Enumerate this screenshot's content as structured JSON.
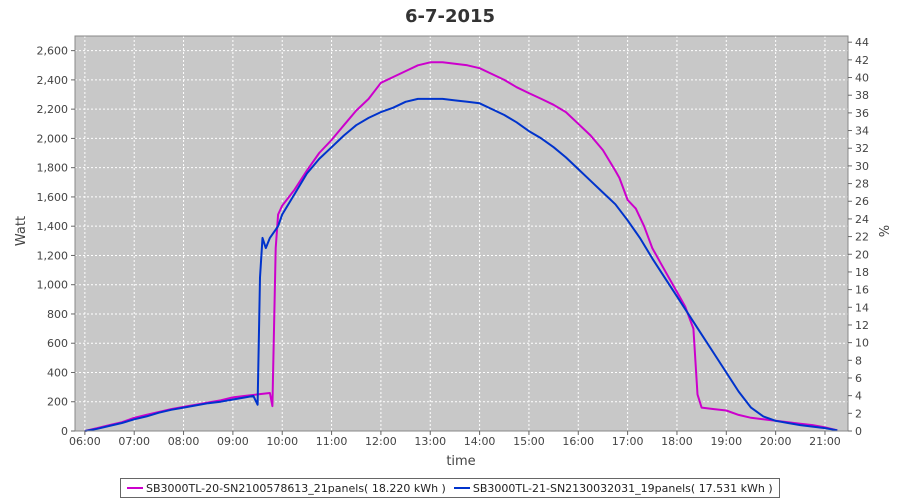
{
  "chart_data": {
    "type": "line",
    "title": "6-7-2015",
    "xlabel": "time",
    "ylabel": "Watt",
    "y2label": "%",
    "x_range": [
      "05:48",
      "21:28"
    ],
    "x_ticks": [
      "06:00",
      "07:00",
      "08:00",
      "09:00",
      "10:00",
      "11:00",
      "12:00",
      "13:00",
      "14:00",
      "15:00",
      "16:00",
      "17:00",
      "18:00",
      "19:00",
      "20:00",
      "21:00"
    ],
    "ylim": [
      0,
      2700
    ],
    "y_ticks": [
      "0",
      "200",
      "400",
      "600",
      "800",
      "1,000",
      "1,200",
      "1,400",
      "1,600",
      "1,800",
      "2,000",
      "2,200",
      "2,400",
      "2,600"
    ],
    "y2lim": [
      0,
      44.7
    ],
    "y2_ticks": [
      "0",
      "2",
      "4",
      "6",
      "8",
      "10",
      "12",
      "14",
      "16",
      "18",
      "20",
      "22",
      "24",
      "26",
      "28",
      "30",
      "32",
      "34",
      "36",
      "38",
      "40",
      "42",
      "44"
    ],
    "grid": true,
    "legend_position": "bottom",
    "plot_background": "#c8c8c8",
    "series": [
      {
        "name": "SB3000TL-20-SN2100578613_21panels( 18.220 kWh )",
        "color": "#cc00cc",
        "points": [
          [
            "06:00",
            0
          ],
          [
            "06:15",
            20
          ],
          [
            "06:30",
            40
          ],
          [
            "06:45",
            60
          ],
          [
            "07:00",
            90
          ],
          [
            "07:15",
            110
          ],
          [
            "07:30",
            130
          ],
          [
            "07:45",
            150
          ],
          [
            "08:00",
            165
          ],
          [
            "08:15",
            180
          ],
          [
            "08:30",
            195
          ],
          [
            "08:45",
            210
          ],
          [
            "09:00",
            230
          ],
          [
            "09:15",
            240
          ],
          [
            "09:30",
            250
          ],
          [
            "09:45",
            260
          ],
          [
            "09:48",
            170
          ],
          [
            "09:52",
            1250
          ],
          [
            "09:55",
            1480
          ],
          [
            "10:00",
            1540
          ],
          [
            "10:15",
            1650
          ],
          [
            "10:30",
            1780
          ],
          [
            "10:45",
            1900
          ],
          [
            "11:00",
            1990
          ],
          [
            "11:15",
            2090
          ],
          [
            "11:30",
            2190
          ],
          [
            "11:45",
            2270
          ],
          [
            "12:00",
            2380
          ],
          [
            "12:15",
            2420
          ],
          [
            "12:30",
            2460
          ],
          [
            "12:45",
            2500
          ],
          [
            "13:00",
            2520
          ],
          [
            "13:15",
            2520
          ],
          [
            "13:30",
            2510
          ],
          [
            "13:45",
            2500
          ],
          [
            "14:00",
            2480
          ],
          [
            "14:15",
            2440
          ],
          [
            "14:30",
            2400
          ],
          [
            "14:45",
            2350
          ],
          [
            "15:00",
            2310
          ],
          [
            "15:15",
            2270
          ],
          [
            "15:30",
            2230
          ],
          [
            "15:45",
            2180
          ],
          [
            "16:00",
            2100
          ],
          [
            "16:15",
            2020
          ],
          [
            "16:30",
            1920
          ],
          [
            "16:45",
            1780
          ],
          [
            "16:50",
            1730
          ],
          [
            "17:00",
            1580
          ],
          [
            "17:10",
            1520
          ],
          [
            "17:20",
            1400
          ],
          [
            "17:30",
            1250
          ],
          [
            "17:40",
            1150
          ],
          [
            "17:50",
            1050
          ],
          [
            "18:00",
            950
          ],
          [
            "18:10",
            850
          ],
          [
            "18:20",
            700
          ],
          [
            "18:25",
            250
          ],
          [
            "18:30",
            160
          ],
          [
            "18:45",
            150
          ],
          [
            "19:00",
            140
          ],
          [
            "19:15",
            110
          ],
          [
            "19:30",
            90
          ],
          [
            "19:45",
            80
          ],
          [
            "20:00",
            70
          ],
          [
            "20:15",
            60
          ],
          [
            "20:30",
            50
          ],
          [
            "20:45",
            40
          ],
          [
            "21:00",
            25
          ],
          [
            "21:15",
            5
          ]
        ]
      },
      {
        "name": "SB3000TL-21-SN2130032031_19panels( 17.531 kWh )",
        "color": "#0033cc",
        "points": [
          [
            "06:00",
            0
          ],
          [
            "06:15",
            15
          ],
          [
            "06:30",
            35
          ],
          [
            "06:45",
            55
          ],
          [
            "07:00",
            80
          ],
          [
            "07:15",
            100
          ],
          [
            "07:30",
            125
          ],
          [
            "07:45",
            145
          ],
          [
            "08:00",
            160
          ],
          [
            "08:15",
            175
          ],
          [
            "08:30",
            190
          ],
          [
            "08:45",
            200
          ],
          [
            "09:00",
            215
          ],
          [
            "09:15",
            230
          ],
          [
            "09:25",
            240
          ],
          [
            "09:30",
            180
          ],
          [
            "09:33",
            1050
          ],
          [
            "09:36",
            1320
          ],
          [
            "09:40",
            1250
          ],
          [
            "09:45",
            1320
          ],
          [
            "09:55",
            1400
          ],
          [
            "10:00",
            1480
          ],
          [
            "10:15",
            1620
          ],
          [
            "10:30",
            1760
          ],
          [
            "10:45",
            1860
          ],
          [
            "11:00",
            1940
          ],
          [
            "11:15",
            2020
          ],
          [
            "11:30",
            2090
          ],
          [
            "11:45",
            2140
          ],
          [
            "12:00",
            2180
          ],
          [
            "12:15",
            2210
          ],
          [
            "12:30",
            2250
          ],
          [
            "12:45",
            2270
          ],
          [
            "13:00",
            2270
          ],
          [
            "13:15",
            2270
          ],
          [
            "13:30",
            2260
          ],
          [
            "13:45",
            2250
          ],
          [
            "14:00",
            2240
          ],
          [
            "14:15",
            2200
          ],
          [
            "14:30",
            2160
          ],
          [
            "14:45",
            2110
          ],
          [
            "15:00",
            2050
          ],
          [
            "15:15",
            2000
          ],
          [
            "15:30",
            1940
          ],
          [
            "15:45",
            1870
          ],
          [
            "16:00",
            1790
          ],
          [
            "16:15",
            1710
          ],
          [
            "16:30",
            1630
          ],
          [
            "16:45",
            1550
          ],
          [
            "17:00",
            1440
          ],
          [
            "17:15",
            1320
          ],
          [
            "17:30",
            1180
          ],
          [
            "17:45",
            1050
          ],
          [
            "18:00",
            920
          ],
          [
            "18:15",
            790
          ],
          [
            "18:30",
            660
          ],
          [
            "18:45",
            530
          ],
          [
            "19:00",
            400
          ],
          [
            "19:15",
            270
          ],
          [
            "19:30",
            160
          ],
          [
            "19:45",
            100
          ],
          [
            "20:00",
            70
          ],
          [
            "20:15",
            55
          ],
          [
            "20:30",
            40
          ],
          [
            "20:45",
            30
          ],
          [
            "21:00",
            20
          ],
          [
            "21:15",
            5
          ]
        ]
      }
    ]
  }
}
